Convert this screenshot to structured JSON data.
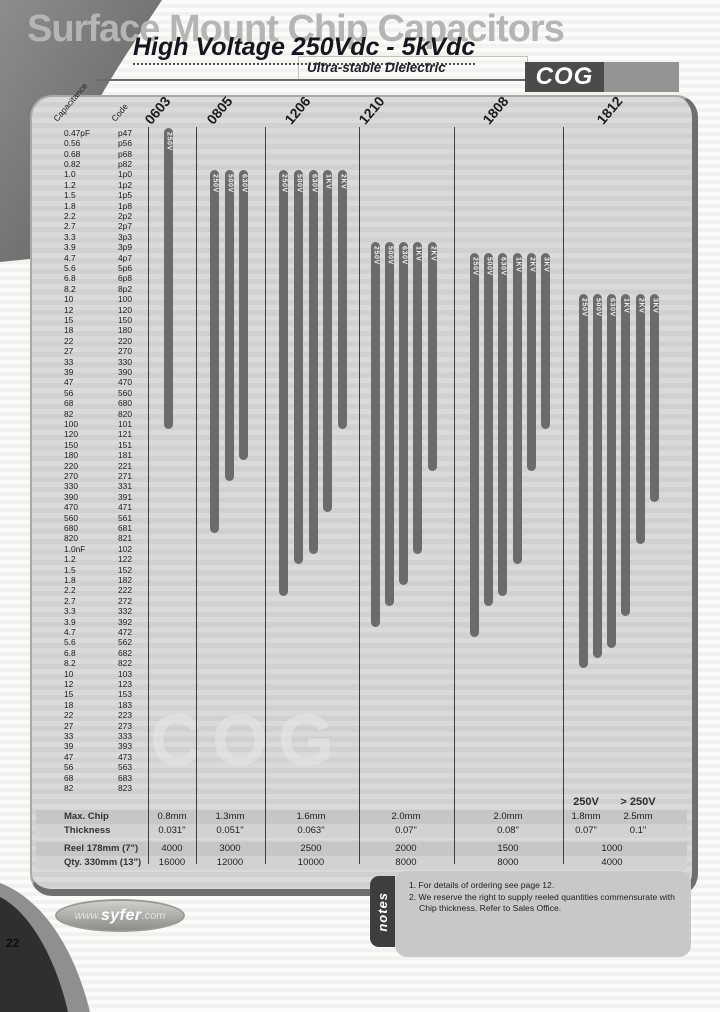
{
  "page": {
    "title": "Surface Mount Chip Capacitors",
    "subtitle": "High Voltage 250Vdc - 5kVdc",
    "tagline": "Ultra-stable Dielectric",
    "series_badge": "COG",
    "watermark": "COG",
    "page_number": "22",
    "logo": {
      "prefix": "www.",
      "name": "syfer",
      "suffix": ".com"
    }
  },
  "chart_data": {
    "type": "range-bars",
    "title": "High Voltage 250Vdc - 5kVdc",
    "column_headers": [
      "Capacitance",
      "Code",
      "0603",
      "0805",
      "1206",
      "1210",
      "1808",
      "1812"
    ],
    "rows": [
      {
        "cap": "0.47pF",
        "code": "p47"
      },
      {
        "cap": "0.56",
        "code": "p56"
      },
      {
        "cap": "0.68",
        "code": "p68"
      },
      {
        "cap": "0.82",
        "code": "p82"
      },
      {
        "cap": "1.0",
        "code": "1p0"
      },
      {
        "cap": "1.2",
        "code": "1p2"
      },
      {
        "cap": "1.5",
        "code": "1p5"
      },
      {
        "cap": "1.8",
        "code": "1p8"
      },
      {
        "cap": "2.2",
        "code": "2p2"
      },
      {
        "cap": "2.7",
        "code": "2p7"
      },
      {
        "cap": "3.3",
        "code": "3p3"
      },
      {
        "cap": "3.9",
        "code": "3p9"
      },
      {
        "cap": "4.7",
        "code": "4p7"
      },
      {
        "cap": "5.6",
        "code": "5p6"
      },
      {
        "cap": "6.8",
        "code": "6p8"
      },
      {
        "cap": "8.2",
        "code": "8p2"
      },
      {
        "cap": "10",
        "code": "100"
      },
      {
        "cap": "12",
        "code": "120"
      },
      {
        "cap": "15",
        "code": "150"
      },
      {
        "cap": "18",
        "code": "180"
      },
      {
        "cap": "22",
        "code": "220"
      },
      {
        "cap": "27",
        "code": "270"
      },
      {
        "cap": "33",
        "code": "330"
      },
      {
        "cap": "39",
        "code": "390"
      },
      {
        "cap": "47",
        "code": "470"
      },
      {
        "cap": "56",
        "code": "560"
      },
      {
        "cap": "68",
        "code": "680"
      },
      {
        "cap": "82",
        "code": "820"
      },
      {
        "cap": "100",
        "code": "101"
      },
      {
        "cap": "120",
        "code": "121"
      },
      {
        "cap": "150",
        "code": "151"
      },
      {
        "cap": "180",
        "code": "181"
      },
      {
        "cap": "220",
        "code": "221"
      },
      {
        "cap": "270",
        "code": "271"
      },
      {
        "cap": "330",
        "code": "331"
      },
      {
        "cap": "390",
        "code": "391"
      },
      {
        "cap": "470",
        "code": "471"
      },
      {
        "cap": "560",
        "code": "561"
      },
      {
        "cap": "680",
        "code": "681"
      },
      {
        "cap": "820",
        "code": "821"
      },
      {
        "cap": "1.0nF",
        "code": "102"
      },
      {
        "cap": "1.2",
        "code": "122"
      },
      {
        "cap": "1.5",
        "code": "152"
      },
      {
        "cap": "1.8",
        "code": "182"
      },
      {
        "cap": "2.2",
        "code": "222"
      },
      {
        "cap": "2.7",
        "code": "272"
      },
      {
        "cap": "3.3",
        "code": "332"
      },
      {
        "cap": "3.9",
        "code": "392"
      },
      {
        "cap": "4.7",
        "code": "472"
      },
      {
        "cap": "5.6",
        "code": "562"
      },
      {
        "cap": "6.8",
        "code": "682"
      },
      {
        "cap": "8.2",
        "code": "822"
      },
      {
        "cap": "10",
        "code": "103"
      },
      {
        "cap": "12",
        "code": "123"
      },
      {
        "cap": "15",
        "code": "153"
      },
      {
        "cap": "18",
        "code": "183"
      },
      {
        "cap": "22",
        "code": "223"
      },
      {
        "cap": "27",
        "code": "273"
      },
      {
        "cap": "33",
        "code": "333"
      },
      {
        "cap": "39",
        "code": "393"
      },
      {
        "cap": "47",
        "code": "473"
      },
      {
        "cap": "56",
        "code": "563"
      },
      {
        "cap": "68",
        "code": "683"
      },
      {
        "cap": "82",
        "code": "823"
      }
    ],
    "series": [
      {
        "package": "0603",
        "bars": [
          {
            "voltage": "250V",
            "from_idx": 0,
            "to_idx": 28,
            "from_cap": "0.47pF",
            "to_cap": "100pF"
          }
        ]
      },
      {
        "package": "0805",
        "bars": [
          {
            "voltage": "250V",
            "from_idx": 4,
            "to_idx": 38,
            "from_cap": "1.0pF",
            "to_cap": "680pF"
          },
          {
            "voltage": "500V",
            "from_idx": 4,
            "to_idx": 33,
            "from_cap": "1.0pF",
            "to_cap": "270pF"
          },
          {
            "voltage": "630V",
            "from_idx": 4,
            "to_idx": 31,
            "from_cap": "1.0pF",
            "to_cap": "180pF"
          }
        ]
      },
      {
        "package": "1206",
        "bars": [
          {
            "voltage": "250V",
            "from_idx": 4,
            "to_idx": 44,
            "from_cap": "1.0pF",
            "to_cap": "2.2nF"
          },
          {
            "voltage": "500V",
            "from_idx": 4,
            "to_idx": 41,
            "from_cap": "1.0pF",
            "to_cap": "1.2nF"
          },
          {
            "voltage": "630V",
            "from_idx": 4,
            "to_idx": 40,
            "from_cap": "1.0pF",
            "to_cap": "1.0nF"
          },
          {
            "voltage": "1KV",
            "from_idx": 4,
            "to_idx": 36,
            "from_cap": "1.0pF",
            "to_cap": "470pF"
          },
          {
            "voltage": "2KV",
            "from_idx": 4,
            "to_idx": 28,
            "from_cap": "1.0pF",
            "to_cap": "100pF"
          }
        ]
      },
      {
        "package": "1210",
        "bars": [
          {
            "voltage": "250V",
            "from_idx": 11,
            "to_idx": 47,
            "from_cap": "3.9pF",
            "to_cap": "3.9nF"
          },
          {
            "voltage": "500V",
            "from_idx": 11,
            "to_idx": 45,
            "from_cap": "3.9pF",
            "to_cap": "2.7nF"
          },
          {
            "voltage": "630V",
            "from_idx": 11,
            "to_idx": 43,
            "from_cap": "3.9pF",
            "to_cap": "1.8nF"
          },
          {
            "voltage": "1KV",
            "from_idx": 11,
            "to_idx": 40,
            "from_cap": "3.9pF",
            "to_cap": "1.0nF"
          },
          {
            "voltage": "2KV",
            "from_idx": 11,
            "to_idx": 32,
            "from_cap": "3.9pF",
            "to_cap": "220pF"
          }
        ]
      },
      {
        "package": "1808",
        "bars": [
          {
            "voltage": "250V",
            "from_idx": 12,
            "to_idx": 48,
            "from_cap": "4.7pF",
            "to_cap": "4.7nF"
          },
          {
            "voltage": "500V",
            "from_idx": 12,
            "to_idx": 45,
            "from_cap": "4.7pF",
            "to_cap": "2.7nF"
          },
          {
            "voltage": "630V",
            "from_idx": 12,
            "to_idx": 44,
            "from_cap": "4.7pF",
            "to_cap": "2.2nF"
          },
          {
            "voltage": "1KV",
            "from_idx": 12,
            "to_idx": 41,
            "from_cap": "4.7pF",
            "to_cap": "1.2nF"
          },
          {
            "voltage": "2KV",
            "from_idx": 12,
            "to_idx": 32,
            "from_cap": "4.7pF",
            "to_cap": "220pF"
          },
          {
            "voltage": "3KV",
            "from_idx": 12,
            "to_idx": 28,
            "from_cap": "4.7pF",
            "to_cap": "100pF"
          }
        ]
      },
      {
        "package": "1812",
        "bars": [
          {
            "voltage": "250V",
            "from_idx": 16,
            "to_idx": 51,
            "from_cap": "10pF",
            "to_cap": "8.2nF"
          },
          {
            "voltage": "500V",
            "from_idx": 16,
            "to_idx": 50,
            "from_cap": "10pF",
            "to_cap": "6.8nF"
          },
          {
            "voltage": "630V",
            "from_idx": 16,
            "to_idx": 49,
            "from_cap": "10pF",
            "to_cap": "5.6nF"
          },
          {
            "voltage": "1KV",
            "from_idx": 16,
            "to_idx": 46,
            "from_cap": "10pF",
            "to_cap": "3.3nF"
          },
          {
            "voltage": "2KV",
            "from_idx": 16,
            "to_idx": 39,
            "from_cap": "10pF",
            "to_cap": "820pF"
          },
          {
            "voltage": "3KV",
            "from_idx": 16,
            "to_idx": 35,
            "from_cap": "10pF",
            "to_cap": "390pF"
          }
        ]
      }
    ]
  },
  "bottom_table": {
    "split_headers": [
      "250V",
      "> 250V"
    ],
    "rows": [
      {
        "label": "Max. Chip",
        "values": [
          "0.8mm",
          "1.3mm",
          "1.6mm",
          "2.0mm",
          "2.0mm",
          "1.8mm",
          "2.5mm"
        ]
      },
      {
        "label": "Thickness",
        "values": [
          "0.031\"",
          "0.051\"",
          "0.063\"",
          "0.07\"",
          "0.08\"",
          "0.07\"",
          "0.1\""
        ]
      },
      {
        "label": "Reel  178mm (7\")",
        "values": [
          "4000",
          "3000",
          "2500",
          "2000",
          "1500",
          "1000"
        ]
      },
      {
        "label": "Qty. 330mm (13\")",
        "values": [
          "16000",
          "12000",
          "10000",
          "8000",
          "8000",
          "4000"
        ]
      }
    ]
  },
  "notes": {
    "tab": "notes",
    "items": [
      "1. For details of ordering see page 12.",
      "2. We reserve the right to supply reeled quantities commensurate with Chip thickness.  Refer to Sales Office."
    ]
  },
  "colors": {
    "bar": "#6b6b6b",
    "panel": "#d6d6d4",
    "badge": "#4b4b4b",
    "heading": "#16161f",
    "faded_title": "#b5b5b3"
  }
}
